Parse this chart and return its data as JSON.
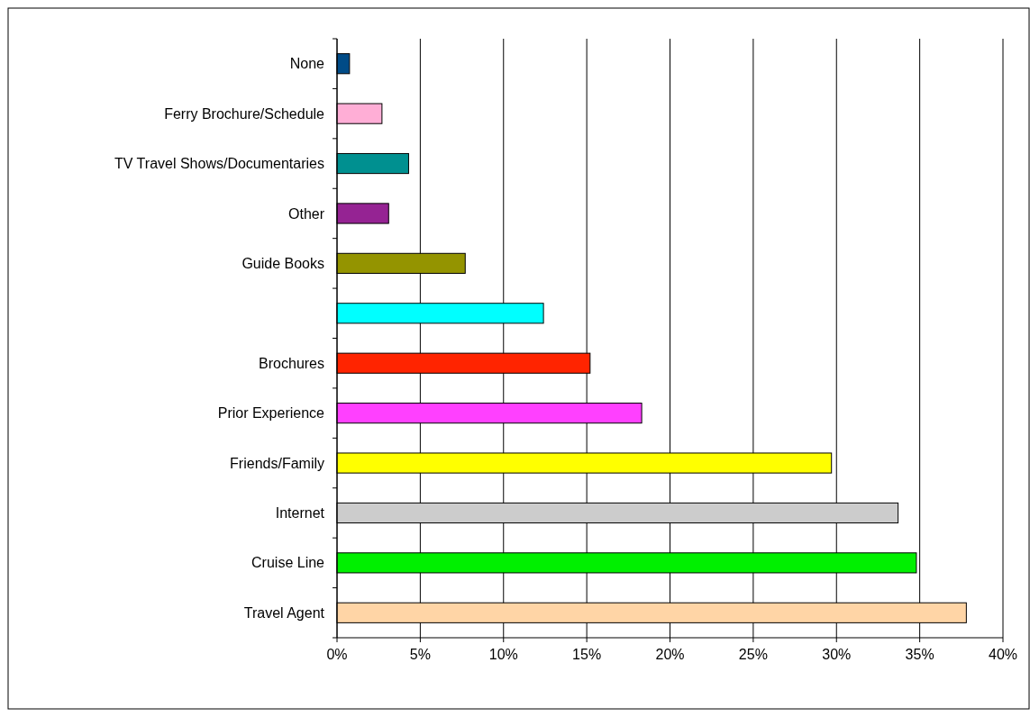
{
  "chart_data": {
    "type": "bar",
    "orientation": "horizontal",
    "categories": [
      "None",
      "Ferry Brochure/Schedule",
      "TV Travel Shows/Documentaries",
      "Other",
      "Guide Books",
      null,
      "Brochures",
      "Prior Experience",
      "Friends/Family",
      "Internet",
      "Cruise Line",
      "Travel Agent"
    ],
    "values": [
      0.75,
      2.7,
      4.3,
      3.1,
      7.7,
      12.4,
      15.2,
      18.3,
      29.7,
      33.7,
      34.8,
      37.8
    ],
    "colors": [
      "#004b87",
      "#ffaed6",
      "#009090",
      "#952393",
      "#949400",
      "#00ffff",
      "#ff2400",
      "#ff40ff",
      "#ffff00",
      "#cccccc",
      "#00f000",
      "#ffd5a6"
    ],
    "xlim": [
      0,
      40
    ],
    "xticks": [
      {
        "value": 0,
        "label": "0%"
      },
      {
        "value": 5,
        "label": "5%"
      },
      {
        "value": 10,
        "label": "10%"
      },
      {
        "value": 15,
        "label": "15%"
      },
      {
        "value": 20,
        "label": "20%"
      },
      {
        "value": 25,
        "label": "25%"
      },
      {
        "value": 30,
        "label": "30%"
      },
      {
        "value": 35,
        "label": "35%"
      },
      {
        "value": 40,
        "label": "40%"
      }
    ],
    "grid": "x"
  }
}
